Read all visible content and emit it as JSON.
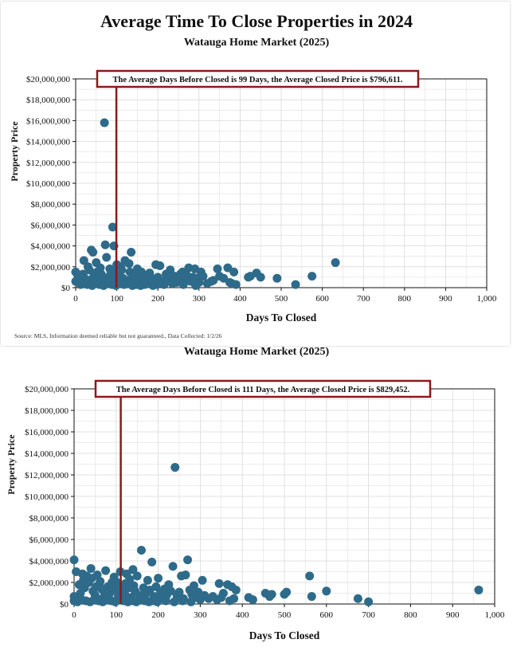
{
  "page": {
    "title": "Average Time To Close Properties in 2024",
    "subtitle": "Watauga Home Market (2025)",
    "source": "Source: MLS, Information deemed reliable but not guaranteed., Data Collected: 1/2/26",
    "second_subtitle": "Watauga Home Market (2025)"
  },
  "colors": {
    "point": "#2e6b8a",
    "avg_line": "#8b1a1a",
    "grid": "#d9d9d9"
  },
  "chart_data": [
    {
      "type": "scatter",
      "title": "Average Time To Close Properties in 2024",
      "subtitle": "Watauga Home Market (2025)",
      "xlabel": "Days To Closed",
      "ylabel": "Property Price",
      "xlim": [
        0,
        1000
      ],
      "ylim": [
        0,
        20000000
      ],
      "x_ticks": [
        "0",
        "100",
        "200",
        "300",
        "400",
        "500",
        "600",
        "700",
        "800",
        "900",
        "1,000"
      ],
      "y_ticks": [
        "$0",
        "$2,000,000",
        "$4,000,000",
        "$6,000,000",
        "$8,000,000",
        "$10,000,000",
        "$12,000,000",
        "$14,000,000",
        "$16,000,000",
        "$18,000,000",
        "$20,000,000"
      ],
      "average_days": 99,
      "annotation": "The Average Days Before Closed is 99 Days, the Average Closed Price is $796,611.",
      "points": [
        [
          70,
          15800000
        ],
        [
          90,
          5800000
        ],
        [
          72,
          4100000
        ],
        [
          93,
          4000000
        ],
        [
          38,
          3600000
        ],
        [
          42,
          3400000
        ],
        [
          135,
          3400000
        ],
        [
          75,
          2900000
        ],
        [
          20,
          2600000
        ],
        [
          50,
          2400000
        ],
        [
          120,
          2600000
        ],
        [
          130,
          2300000
        ],
        [
          100,
          2200000
        ],
        [
          110,
          2000000
        ],
        [
          195,
          2200000
        ],
        [
          205,
          2100000
        ],
        [
          275,
          1900000
        ],
        [
          290,
          1800000
        ],
        [
          345,
          1800000
        ],
        [
          370,
          1900000
        ],
        [
          385,
          1500000
        ],
        [
          305,
          1500000
        ],
        [
          230,
          1700000
        ],
        [
          260,
          1500000
        ],
        [
          150,
          1800000
        ],
        [
          160,
          1500000
        ],
        [
          180,
          1400000
        ],
        [
          60,
          1900000
        ],
        [
          30,
          2000000
        ],
        [
          0,
          1500000
        ],
        [
          5,
          1200000
        ],
        [
          15,
          1000000
        ],
        [
          25,
          800000
        ],
        [
          35,
          700000
        ],
        [
          45,
          600000
        ],
        [
          55,
          900000
        ],
        [
          65,
          1100000
        ],
        [
          80,
          500000
        ],
        [
          85,
          1300000
        ],
        [
          95,
          1600000
        ],
        [
          105,
          1400000
        ],
        [
          115,
          900000
        ],
        [
          125,
          700000
        ],
        [
          140,
          1000000
        ],
        [
          145,
          600000
        ],
        [
          155,
          800000
        ],
        [
          165,
          1200000
        ],
        [
          170,
          500000
        ],
        [
          185,
          900000
        ],
        [
          190,
          700000
        ],
        [
          200,
          1000000
        ],
        [
          210,
          600000
        ],
        [
          220,
          1300000
        ],
        [
          225,
          800000
        ],
        [
          240,
          1100000
        ],
        [
          245,
          500000
        ],
        [
          250,
          900000
        ],
        [
          255,
          1300000
        ],
        [
          265,
          700000
        ],
        [
          270,
          1200000
        ],
        [
          280,
          600000
        ],
        [
          285,
          1000000
        ],
        [
          295,
          900000
        ],
        [
          300,
          500000
        ],
        [
          310,
          1100000
        ],
        [
          320,
          400000
        ],
        [
          330,
          600000
        ],
        [
          335,
          700000
        ],
        [
          350,
          1100000
        ],
        [
          360,
          900000
        ],
        [
          375,
          500000
        ],
        [
          380,
          400000
        ],
        [
          390,
          300000
        ],
        [
          420,
          1000000
        ],
        [
          425,
          1100000
        ],
        [
          440,
          1400000
        ],
        [
          450,
          1000000
        ],
        [
          490,
          900000
        ],
        [
          535,
          300000
        ],
        [
          575,
          1100000
        ],
        [
          632,
          2400000
        ],
        [
          10,
          400000
        ],
        [
          0,
          600000
        ],
        [
          12,
          300000
        ],
        [
          22,
          500000
        ],
        [
          28,
          300000
        ],
        [
          40,
          200000
        ],
        [
          48,
          400000
        ],
        [
          58,
          300000
        ],
        [
          68,
          200000
        ],
        [
          78,
          400000
        ],
        [
          88,
          300000
        ],
        [
          98,
          200000
        ],
        [
          108,
          500000
        ],
        [
          118,
          300000
        ],
        [
          128,
          400000
        ],
        [
          138,
          200000
        ],
        [
          148,
          300000
        ],
        [
          158,
          200000
        ],
        [
          168,
          300000
        ],
        [
          178,
          400000
        ],
        [
          188,
          200000
        ],
        [
          198,
          300000
        ],
        [
          215,
          300000
        ],
        [
          235,
          400000
        ],
        [
          262,
          300000
        ],
        [
          292,
          200000
        ],
        [
          18,
          1300000
        ],
        [
          33,
          1700000
        ],
        [
          52,
          1500000
        ],
        [
          62,
          1300000
        ],
        [
          83,
          1800000
        ],
        [
          92,
          1100000
        ],
        [
          112,
          1700000
        ],
        [
          132,
          1500000
        ],
        [
          8,
          900000
        ],
        [
          44,
          1100000
        ],
        [
          70,
          800000
        ],
        [
          102,
          800000
        ],
        [
          142,
          1300000
        ],
        [
          175,
          1100000
        ]
      ]
    },
    {
      "type": "scatter",
      "title": "Watauga Home Market (2025)",
      "xlabel": "Days To Closed",
      "ylabel": "Property Price",
      "xlim": [
        0,
        1000
      ],
      "ylim": [
        0,
        20000000
      ],
      "x_ticks": [
        "0",
        "100",
        "200",
        "300",
        "400",
        "500",
        "600",
        "700",
        "800",
        "900",
        "1,000"
      ],
      "y_ticks": [
        "$0",
        "$2,000,000",
        "$4,000,000",
        "$6,000,000",
        "$8,000,000",
        "$10,000,000",
        "$12,000,000",
        "$14,000,000",
        "$16,000,000",
        "$18,000,000",
        "$20,000,000"
      ],
      "average_days": 111,
      "annotation": "The Average Days Before Closed is 111 Days, the Average Closed Price is $829,452.",
      "points": [
        [
          240,
          12700000
        ],
        [
          160,
          5000000
        ],
        [
          0,
          4100000
        ],
        [
          185,
          3900000
        ],
        [
          140,
          3200000
        ],
        [
          270,
          4100000
        ],
        [
          235,
          3500000
        ],
        [
          40,
          3300000
        ],
        [
          75,
          3100000
        ],
        [
          110,
          3000000
        ],
        [
          5,
          3000000
        ],
        [
          20,
          2800000
        ],
        [
          30,
          2600000
        ],
        [
          55,
          2700000
        ],
        [
          95,
          2500000
        ],
        [
          125,
          2800000
        ],
        [
          150,
          2600000
        ],
        [
          200,
          2400000
        ],
        [
          255,
          2600000
        ],
        [
          265,
          2700000
        ],
        [
          305,
          2200000
        ],
        [
          345,
          1900000
        ],
        [
          365,
          1800000
        ],
        [
          375,
          1600000
        ],
        [
          385,
          1300000
        ],
        [
          285,
          1700000
        ],
        [
          225,
          1800000
        ],
        [
          175,
          2200000
        ],
        [
          560,
          2600000
        ],
        [
          505,
          1100000
        ],
        [
          455,
          1000000
        ],
        [
          415,
          600000
        ],
        [
          425,
          400000
        ],
        [
          465,
          700000
        ],
        [
          470,
          900000
        ],
        [
          500,
          900000
        ],
        [
          565,
          700000
        ],
        [
          600,
          1200000
        ],
        [
          675,
          500000
        ],
        [
          700,
          200000
        ],
        [
          962,
          1300000
        ],
        [
          10,
          500000
        ],
        [
          15,
          1000000
        ],
        [
          25,
          1500000
        ],
        [
          35,
          2000000
        ],
        [
          45,
          1200000
        ],
        [
          50,
          800000
        ],
        [
          60,
          1800000
        ],
        [
          65,
          1400000
        ],
        [
          70,
          600000
        ],
        [
          80,
          1600000
        ],
        [
          85,
          1000000
        ],
        [
          90,
          2000000
        ],
        [
          100,
          1300000
        ],
        [
          105,
          700000
        ],
        [
          115,
          1700000
        ],
        [
          120,
          1000000
        ],
        [
          130,
          1500000
        ],
        [
          135,
          600000
        ],
        [
          145,
          1200000
        ],
        [
          155,
          800000
        ],
        [
          165,
          1500000
        ],
        [
          170,
          900000
        ],
        [
          180,
          1300000
        ],
        [
          190,
          700000
        ],
        [
          195,
          1600000
        ],
        [
          205,
          1000000
        ],
        [
          210,
          600000
        ],
        [
          215,
          1400000
        ],
        [
          220,
          800000
        ],
        [
          230,
          1200000
        ],
        [
          245,
          700000
        ],
        [
          250,
          1100000
        ],
        [
          260,
          500000
        ],
        [
          275,
          1300000
        ],
        [
          280,
          900000
        ],
        [
          290,
          600000
        ],
        [
          295,
          1100000
        ],
        [
          300,
          400000
        ],
        [
          310,
          800000
        ],
        [
          320,
          500000
        ],
        [
          330,
          700000
        ],
        [
          340,
          400000
        ],
        [
          350,
          600000
        ],
        [
          355,
          1000000
        ],
        [
          370,
          300000
        ],
        [
          380,
          500000
        ],
        [
          0,
          300000
        ],
        [
          8,
          200000
        ],
        [
          18,
          400000
        ],
        [
          28,
          300000
        ],
        [
          38,
          200000
        ],
        [
          48,
          400000
        ],
        [
          58,
          300000
        ],
        [
          68,
          200000
        ],
        [
          78,
          400000
        ],
        [
          88,
          300000
        ],
        [
          98,
          200000
        ],
        [
          108,
          400000
        ],
        [
          118,
          300000
        ],
        [
          128,
          200000
        ],
        [
          138,
          300000
        ],
        [
          148,
          200000
        ],
        [
          158,
          400000
        ],
        [
          168,
          300000
        ],
        [
          178,
          200000
        ],
        [
          188,
          300000
        ],
        [
          198,
          200000
        ],
        [
          218,
          300000
        ],
        [
          238,
          200000
        ],
        [
          258,
          300000
        ],
        [
          278,
          200000
        ],
        [
          12,
          1800000
        ],
        [
          22,
          2200000
        ],
        [
          42,
          2400000
        ],
        [
          52,
          1600000
        ],
        [
          62,
          2100000
        ],
        [
          72,
          1100000
        ],
        [
          82,
          900000
        ],
        [
          92,
          1500000
        ],
        [
          102,
          2000000
        ],
        [
          112,
          1100000
        ],
        [
          122,
          1900000
        ],
        [
          132,
          2300000
        ],
        [
          142,
          1700000
        ],
        [
          0,
          700000
        ]
      ]
    }
  ]
}
